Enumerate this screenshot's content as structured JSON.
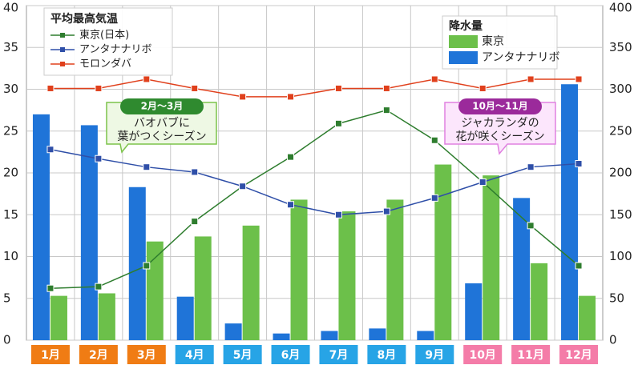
{
  "chart_data": {
    "type": "bar",
    "categories": [
      "1月",
      "2月",
      "3月",
      "4月",
      "5月",
      "6月",
      "7月",
      "8月",
      "9月",
      "10月",
      "11月",
      "12月"
    ],
    "category_colors": [
      "#f07c14",
      "#f07c14",
      "#f07c14",
      "#27a4e6",
      "#27a4e6",
      "#27a4e6",
      "#27a4e6",
      "#27a4e6",
      "#27a4e6",
      "#f47ca8",
      "#f47ca8",
      "#f47ca8"
    ],
    "ylim": [
      0,
      40
    ],
    "yticks": [
      0,
      5,
      10,
      15,
      20,
      25,
      30,
      35,
      40
    ],
    "y2lim": [
      0,
      400
    ],
    "y2ticks": [
      0,
      50,
      100,
      150,
      200,
      250,
      300,
      350,
      400
    ],
    "grid": true,
    "line_legend_title": "平均最高気温",
    "bar_legend_title": "降水量",
    "series": [
      {
        "name": "東京",
        "type": "bar",
        "axis": "y2",
        "color": "#6cc04a",
        "values": [
          53,
          56,
          118,
          124,
          137,
          168,
          154,
          168,
          210,
          197,
          92,
          53
        ]
      },
      {
        "name": "アンタナナリボ",
        "type": "bar",
        "axis": "y2",
        "color": "#1f74d8",
        "values": [
          270,
          257,
          183,
          52,
          20,
          8,
          11,
          14,
          11,
          68,
          170,
          306
        ]
      },
      {
        "name": "東京(日本)",
        "type": "line",
        "color": "#2e7d2e",
        "values": [
          6.2,
          6.4,
          8.9,
          14.2,
          18.4,
          21.9,
          25.9,
          27.5,
          23.9,
          18.9,
          13.7,
          8.9
        ]
      },
      {
        "name": "アンタナナリボ",
        "type": "line",
        "color": "#2f4fa8",
        "values": [
          22.8,
          21.7,
          20.7,
          20.1,
          18.4,
          16.2,
          15.0,
          15.4,
          17.0,
          18.9,
          20.7,
          21.1
        ]
      },
      {
        "name": "モロンダバ",
        "type": "line",
        "color": "#e0401c",
        "values": [
          30.1,
          30.1,
          31.2,
          30.1,
          29.1,
          29.1,
          30.1,
          30.1,
          31.2,
          30.1,
          31.2,
          31.2
        ]
      }
    ],
    "annotations": [
      {
        "period": "2月～3月",
        "lines": [
          "バオバブに",
          "葉がつくシーズン"
        ]
      },
      {
        "period": "10月～11月",
        "lines": [
          "ジャカランダの",
          "花が咲くシーズン"
        ]
      }
    ]
  }
}
